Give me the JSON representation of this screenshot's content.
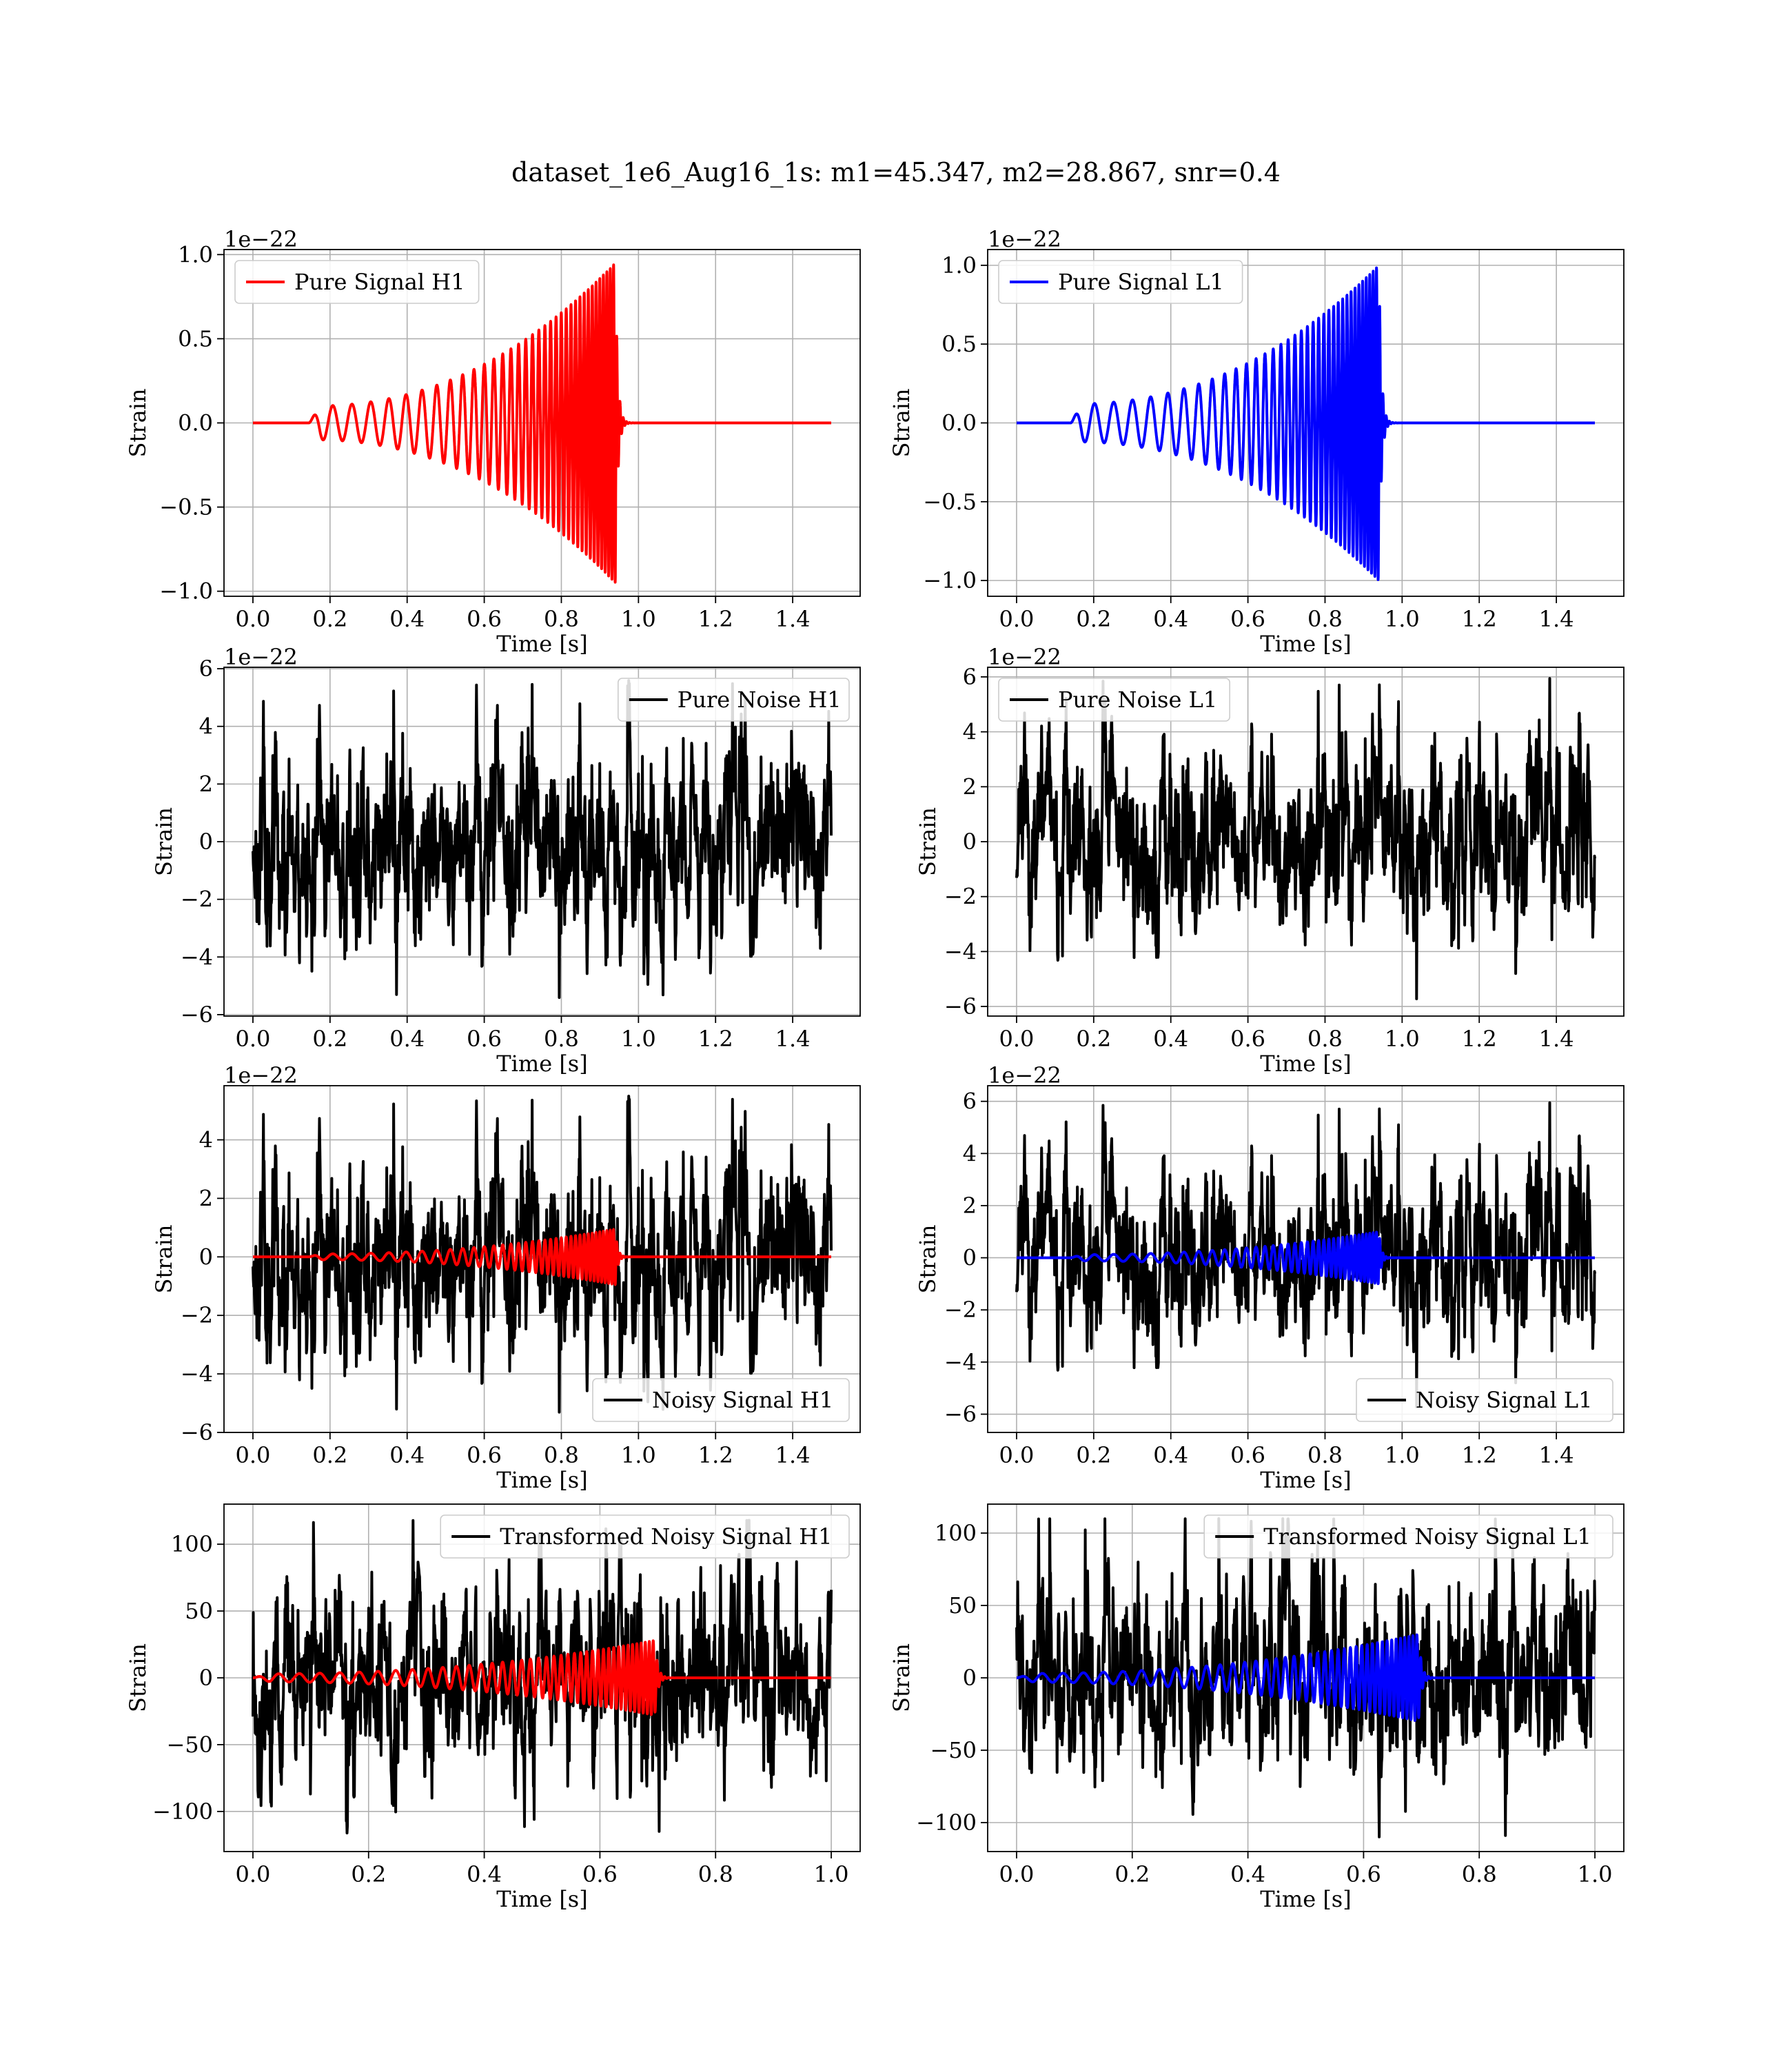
{
  "figure": {
    "title": "dataset_1e6_Aug16_1s: m1=45.347, m2=28.867, snr=0.4",
    "colors": {
      "signal_H1": "#ff0000",
      "signal_L1": "#0000ff",
      "noise": "#000000",
      "grid": "#b0b0b0"
    }
  },
  "chart_data": [
    {
      "id": "pure-signal-h1",
      "type": "line",
      "grid": true,
      "xlabel": "Time [s]",
      "ylabel": "Strain",
      "offset_label": "1e−22",
      "xlim": [
        -0.075,
        1.575
      ],
      "ylim": [
        -1.03,
        1.03
      ],
      "xticks": [
        0.0,
        0.2,
        0.4,
        0.6,
        0.8,
        1.0,
        1.2,
        1.4
      ],
      "xticklabels": [
        "0.0",
        "0.2",
        "0.4",
        "0.6",
        "0.8",
        "1.0",
        "1.2",
        "1.4"
      ],
      "yticks": [
        -1.0,
        -0.5,
        0.0,
        0.5,
        1.0
      ],
      "yticklabels": [
        "−1.0",
        "−0.5",
        "0.0",
        "0.5",
        "1.0"
      ],
      "legend": {
        "position": "upper-left"
      },
      "series": [
        {
          "name": "Pure Signal H1",
          "kind": "chirp",
          "color": "#ff0000",
          "t_start": 0.145,
          "t_merge": 0.94,
          "t_end": 1.5,
          "t_range": [
            0.0,
            1.5
          ],
          "amp_start": 0.1,
          "amp_peak": 0.95,
          "f_start": 20,
          "f_merge": 120,
          "ringdown_decay": 0.006
        }
      ]
    },
    {
      "id": "pure-signal-l1",
      "type": "line",
      "grid": true,
      "xlabel": "Time [s]",
      "ylabel": "Strain",
      "offset_label": "1e−22",
      "xlim": [
        -0.075,
        1.575
      ],
      "ylim": [
        -1.1,
        1.1
      ],
      "xticks": [
        0.0,
        0.2,
        0.4,
        0.6,
        0.8,
        1.0,
        1.2,
        1.4
      ],
      "xticklabels": [
        "0.0",
        "0.2",
        "0.4",
        "0.6",
        "0.8",
        "1.0",
        "1.2",
        "1.4"
      ],
      "yticks": [
        -1.0,
        -0.5,
        0.0,
        0.5,
        1.0
      ],
      "yticklabels": [
        "−1.0",
        "−0.5",
        "0.0",
        "0.5",
        "1.0"
      ],
      "legend": {
        "position": "upper-left"
      },
      "series": [
        {
          "name": "Pure Signal L1",
          "kind": "chirp",
          "color": "#0000ff",
          "t_start": 0.14,
          "t_merge": 0.94,
          "t_end": 1.5,
          "t_range": [
            0.0,
            1.5
          ],
          "amp_start": 0.12,
          "amp_peak": 1.0,
          "f_start": 20,
          "f_merge": 120,
          "ringdown_decay": 0.006
        }
      ]
    },
    {
      "id": "pure-noise-h1",
      "type": "line",
      "grid": true,
      "xlabel": "Time [s]",
      "ylabel": "Strain",
      "offset_label": "1e−22",
      "xlim": [
        -0.075,
        1.575
      ],
      "ylim": [
        -6.05,
        6.05
      ],
      "xticks": [
        0.0,
        0.2,
        0.4,
        0.6,
        0.8,
        1.0,
        1.2,
        1.4
      ],
      "xticklabels": [
        "0.0",
        "0.2",
        "0.4",
        "0.6",
        "0.8",
        "1.0",
        "1.2",
        "1.4"
      ],
      "yticks": [
        -6,
        -4,
        -2,
        0,
        2,
        4,
        6
      ],
      "yticklabels": [
        "−6",
        "−4",
        "−2",
        "0",
        "2",
        "4",
        "6"
      ],
      "legend": {
        "position": "upper-right"
      },
      "series": [
        {
          "name": "Pure Noise H1",
          "kind": "noise",
          "color": "#000000",
          "t_range": [
            0.0,
            1.5
          ],
          "n_points": 1600,
          "sigma": 1.45,
          "max_abs": 5.6,
          "seed": 11
        }
      ]
    },
    {
      "id": "pure-noise-l1",
      "type": "line",
      "grid": true,
      "xlabel": "Time [s]",
      "ylabel": "Strain",
      "offset_label": "1e−22",
      "xlim": [
        -0.075,
        1.575
      ],
      "ylim": [
        -6.35,
        6.35
      ],
      "xticks": [
        0.0,
        0.2,
        0.4,
        0.6,
        0.8,
        1.0,
        1.2,
        1.4
      ],
      "xticklabels": [
        "0.0",
        "0.2",
        "0.4",
        "0.6",
        "0.8",
        "1.0",
        "1.2",
        "1.4"
      ],
      "yticks": [
        -6,
        -4,
        -2,
        0,
        2,
        4,
        6
      ],
      "yticklabels": [
        "−6",
        "−4",
        "−2",
        "0",
        "2",
        "4",
        "6"
      ],
      "legend": {
        "position": "upper-left"
      },
      "series": [
        {
          "name": "Pure Noise L1",
          "kind": "noise",
          "color": "#000000",
          "t_range": [
            0.0,
            1.5
          ],
          "n_points": 1600,
          "sigma": 1.45,
          "max_abs": 6.0,
          "seed": 23
        }
      ]
    },
    {
      "id": "noisy-signal-h1",
      "type": "line",
      "grid": true,
      "xlabel": "Time [s]",
      "ylabel": "Strain",
      "offset_label": "1e−22",
      "xlim": [
        -0.075,
        1.575
      ],
      "ylim": [
        -6.0,
        5.85
      ],
      "xticks": [
        0.0,
        0.2,
        0.4,
        0.6,
        0.8,
        1.0,
        1.2,
        1.4
      ],
      "xticklabels": [
        "0.0",
        "0.2",
        "0.4",
        "0.6",
        "0.8",
        "1.0",
        "1.2",
        "1.4"
      ],
      "yticks": [
        -6,
        -4,
        -2,
        0,
        2,
        4
      ],
      "yticklabels": [
        "−6",
        "−4",
        "−2",
        "0",
        "2",
        "4"
      ],
      "legend": {
        "position": "lower-right"
      },
      "series": [
        {
          "name": "Noisy Signal H1",
          "kind": "noise",
          "color": "#000000",
          "t_range": [
            0.0,
            1.5
          ],
          "n_points": 1600,
          "sigma": 1.45,
          "max_abs": 5.5,
          "seed": 11
        },
        {
          "kind": "chirp",
          "color": "#ff0000",
          "t_start": 0.145,
          "t_merge": 0.94,
          "t_end": 1.5,
          "t_range": [
            0.0,
            1.5
          ],
          "amp_start": 0.1,
          "amp_peak": 0.95,
          "f_start": 20,
          "f_merge": 120,
          "ringdown_decay": 0.006
        }
      ]
    },
    {
      "id": "noisy-signal-l1",
      "type": "line",
      "grid": true,
      "xlabel": "Time [s]",
      "ylabel": "Strain",
      "offset_label": "1e−22",
      "xlim": [
        -0.075,
        1.575
      ],
      "ylim": [
        -6.7,
        6.6
      ],
      "xticks": [
        0.0,
        0.2,
        0.4,
        0.6,
        0.8,
        1.0,
        1.2,
        1.4
      ],
      "xticklabels": [
        "0.0",
        "0.2",
        "0.4",
        "0.6",
        "0.8",
        "1.0",
        "1.2",
        "1.4"
      ],
      "yticks": [
        -6,
        -4,
        -2,
        0,
        2,
        4,
        6
      ],
      "yticklabels": [
        "−6",
        "−4",
        "−2",
        "0",
        "2",
        "4",
        "6"
      ],
      "legend": {
        "position": "lower-right"
      },
      "series": [
        {
          "name": "Noisy Signal L1",
          "kind": "noise",
          "color": "#000000",
          "t_range": [
            0.0,
            1.5
          ],
          "n_points": 1600,
          "sigma": 1.45,
          "max_abs": 6.0,
          "seed": 23
        },
        {
          "kind": "chirp",
          "color": "#0000ff",
          "t_start": 0.14,
          "t_merge": 0.94,
          "t_end": 1.5,
          "t_range": [
            0.0,
            1.5
          ],
          "amp_start": 0.12,
          "amp_peak": 1.0,
          "f_start": 20,
          "f_merge": 120,
          "ringdown_decay": 0.006
        }
      ]
    },
    {
      "id": "transformed-noisy-signal-h1",
      "type": "line",
      "grid": true,
      "xlabel": "Time [s]",
      "ylabel": "Strain",
      "offset_label": "",
      "xlim": [
        -0.05,
        1.05
      ],
      "ylim": [
        -130,
        130
      ],
      "xticks": [
        0.0,
        0.2,
        0.4,
        0.6,
        0.8,
        1.0
      ],
      "xticklabels": [
        "0.0",
        "0.2",
        "0.4",
        "0.6",
        "0.8",
        "1.0"
      ],
      "yticks": [
        -100,
        -50,
        0,
        50,
        100
      ],
      "yticklabels": [
        "−100",
        "−50",
        "0",
        "50",
        "100"
      ],
      "legend": {
        "position": "upper-right"
      },
      "series": [
        {
          "name": "Transformed Noisy Signal H1",
          "kind": "noise",
          "color": "#000000",
          "t_range": [
            0.0,
            1.0
          ],
          "n_points": 1500,
          "sigma": 32,
          "max_abs": 118,
          "seed": 37
        },
        {
          "kind": "chirp",
          "color": "#ff0000",
          "t_start": 0.0,
          "t_merge": 0.695,
          "t_end": 1.0,
          "t_range": [
            0.0,
            1.0
          ],
          "amp_start": 3,
          "amp_peak": 28,
          "f_start": 28,
          "f_merge": 150,
          "ringdown_decay": 0.005
        }
      ]
    },
    {
      "id": "transformed-noisy-signal-l1",
      "type": "line",
      "grid": true,
      "xlabel": "Time [s]",
      "ylabel": "Strain",
      "offset_label": "",
      "xlim": [
        -0.05,
        1.05
      ],
      "ylim": [
        -120,
        120
      ],
      "xticks": [
        0.0,
        0.2,
        0.4,
        0.6,
        0.8,
        1.0
      ],
      "xticklabels": [
        "0.0",
        "0.2",
        "0.4",
        "0.6",
        "0.8",
        "1.0"
      ],
      "yticks": [
        -100,
        -50,
        0,
        50,
        100
      ],
      "yticklabels": [
        "−100",
        "−50",
        "0",
        "50",
        "100"
      ],
      "legend": {
        "position": "upper-right"
      },
      "series": [
        {
          "name": "Transformed Noisy Signal L1",
          "kind": "noise",
          "color": "#000000",
          "t_range": [
            0.0,
            1.0
          ],
          "n_points": 1500,
          "sigma": 30,
          "max_abs": 110,
          "seed": 53
        },
        {
          "kind": "chirp",
          "color": "#0000ff",
          "t_start": 0.0,
          "t_merge": 0.695,
          "t_end": 1.0,
          "t_range": [
            0.0,
            1.0
          ],
          "amp_start": 3,
          "amp_peak": 30,
          "f_start": 28,
          "f_merge": 150,
          "ringdown_decay": 0.005
        }
      ]
    }
  ]
}
